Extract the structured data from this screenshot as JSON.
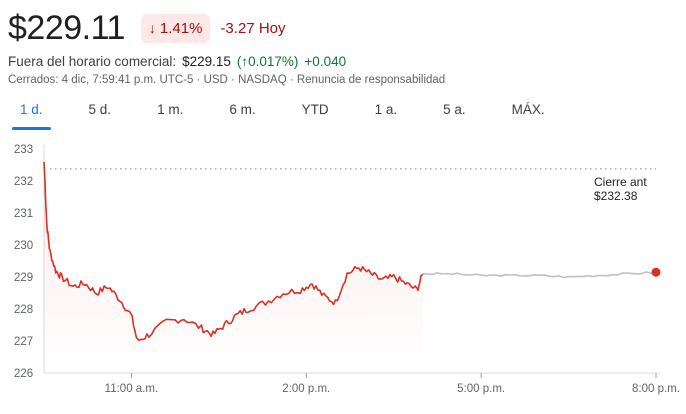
{
  "quote": {
    "price": "$229.11",
    "change_percent": "1.41%",
    "change_arrow": "↓",
    "change_abs": "-3.27",
    "change_period": "Hoy"
  },
  "after_hours": {
    "label": "Fuera del horario comercial:",
    "price": "$229.15",
    "percent": "(↑0.017%)",
    "abs": "+0.040"
  },
  "meta": "Cerrados: 4 dic, 7:59:41 p.m. UTC-5 · USD · NASDAQ · Renuncia de responsabilidad",
  "tabs": [
    "1 d.",
    "5 d.",
    "1 m.",
    "6 m.",
    "YTD",
    "1 a.",
    "5 a.",
    "MÁX."
  ],
  "active_tab": 0,
  "colors": {
    "down": "#d93025",
    "after_hours_line": "#bdc1c6",
    "prev_close_dots": "#9aa0a6"
  },
  "chart_data": {
    "type": "line",
    "xlabel": "",
    "ylabel": "",
    "ylim": [
      226,
      233
    ],
    "yticks": [
      "226",
      "227",
      "228",
      "229",
      "230",
      "231",
      "232",
      "233"
    ],
    "xticks": [
      "11:00 a.m.",
      "2:00 p.m.",
      "5:00 p.m.",
      "8:00 p.m."
    ],
    "xtick_hours": [
      11,
      14,
      17,
      20
    ],
    "x_unit": "hour of day",
    "xlim": [
      9.5,
      20.0
    ],
    "previous_close": {
      "label": "Cierre ant",
      "value_label": "$232.38",
      "value": 232.38
    },
    "regular_session": [
      [
        9.5,
        232.6
      ],
      [
        9.55,
        230.6
      ],
      [
        9.6,
        229.8
      ],
      [
        9.7,
        229.2
      ],
      [
        9.8,
        229.0
      ],
      [
        10.0,
        228.7
      ],
      [
        10.2,
        228.8
      ],
      [
        10.4,
        228.5
      ],
      [
        10.6,
        228.7
      ],
      [
        10.8,
        228.3
      ],
      [
        11.0,
        227.8
      ],
      [
        11.1,
        227.0
      ],
      [
        11.3,
        227.2
      ],
      [
        11.6,
        227.6
      ],
      [
        11.9,
        227.7
      ],
      [
        12.2,
        227.4
      ],
      [
        12.4,
        227.2
      ],
      [
        12.6,
        227.5
      ],
      [
        12.8,
        227.8
      ],
      [
        13.0,
        228.0
      ],
      [
        13.3,
        228.2
      ],
      [
        13.6,
        228.5
      ],
      [
        13.9,
        228.6
      ],
      [
        14.1,
        228.8
      ],
      [
        14.3,
        228.4
      ],
      [
        14.5,
        228.2
      ],
      [
        14.7,
        229.1
      ],
      [
        14.9,
        229.3
      ],
      [
        15.1,
        229.1
      ],
      [
        15.3,
        228.9
      ],
      [
        15.5,
        229.0
      ],
      [
        15.7,
        228.8
      ],
      [
        15.9,
        228.6
      ],
      [
        16.0,
        229.1
      ]
    ],
    "after_hours": [
      [
        16.0,
        229.1
      ],
      [
        16.5,
        229.1
      ],
      [
        17.0,
        229.05
      ],
      [
        17.5,
        229.05
      ],
      [
        18.0,
        229.05
      ],
      [
        18.5,
        229.0
      ],
      [
        19.0,
        229.05
      ],
      [
        19.5,
        229.1
      ],
      [
        20.0,
        229.15
      ]
    ]
  }
}
